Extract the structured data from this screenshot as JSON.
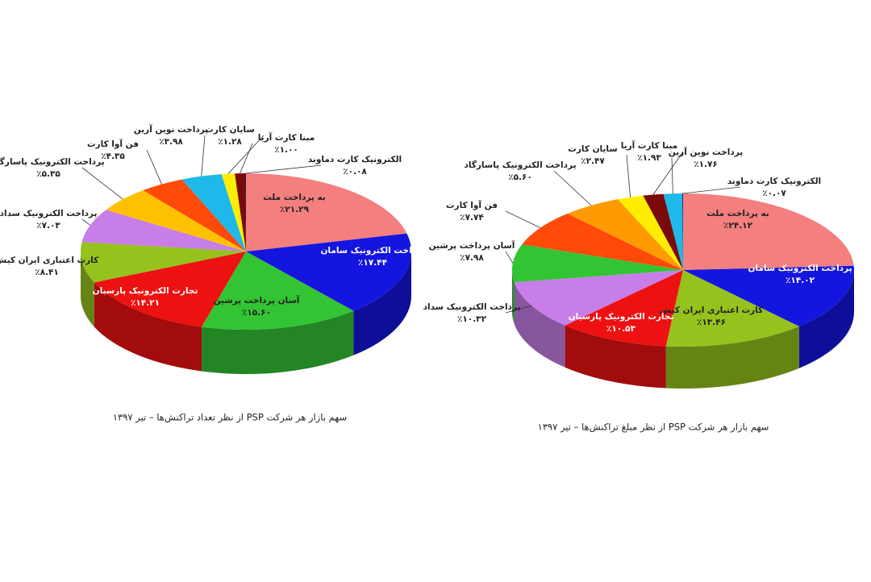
{
  "chart_data": [
    {
      "type": "pie",
      "title": "سهم بازار هر شرکت PSP از نظر تعداد تراکنش‌ها – تیر ۱۳۹۷",
      "categories": [
        "به پرداخت ملت",
        "پرداخت الکترونیک سامان",
        "آسان پرداخت پرشین",
        "تجارت الکترونیک پارسیان",
        "کارت اعتباری ایران کیش",
        "پرداخت الکترونیک سداد",
        "پرداخت الکترونیک پاسارگاد",
        "فن آوا کارت",
        "پرداخت نوین آرین",
        "سایان کارت",
        "مبنا کارت آریا",
        "الکترونیک کارت دماوند"
      ],
      "values": [
        21.29,
        17.44,
        15.6,
        14.21,
        8.41,
        7.03,
        5.35,
        4.35,
        3.98,
        1.28,
        1.0,
        0.08
      ],
      "value_labels": [
        "٪۲۱.۲۹",
        "٪۱۷.۴۴",
        "٪۱۵.۶۰",
        "٪۱۴.۲۱",
        "٪۸.۴۱",
        "٪۷.۰۳",
        "٪۵.۳۵",
        "٪۴.۳۵",
        "٪۳.۹۸",
        "٪۱.۲۸",
        "٪۱.۰۰",
        "٪۰.۰۸"
      ],
      "colors": [
        "#f47f7f",
        "#1515e0",
        "#33c433",
        "#ee1111",
        "#95c21c",
        "#c77ee8",
        "#ffc000",
        "#ff4a0a",
        "#1fb8ea",
        "#ffee00",
        "#7a0a0a",
        "#101050"
      ]
    },
    {
      "type": "pie",
      "title": "سهم بازار هر شرکت PSP از نظر مبلغ تراکنش‌ها – تیر ۱۳۹۷",
      "categories": [
        "به پرداخت ملت",
        "پرداخت الکترونیک سامان",
        "کارت اعتباری ایران کیش",
        "تجارت الکترونیک پارسیان",
        "پرداخت الکترونیک سداد",
        "آسان پرداخت پرشین",
        "فن آوا کارت",
        "پرداخت الکترونیک پاسارگاد",
        "سایان کارت",
        "مبنا کارت آریا",
        "پرداخت نوین آرین",
        "الکترونیک کارت دماوند"
      ],
      "values": [
        24.12,
        14.02,
        13.46,
        10.53,
        10.32,
        7.98,
        7.74,
        5.6,
        2.47,
        1.93,
        1.76,
        0.07
      ],
      "value_labels": [
        "٪۲۴.۱۲",
        "٪۱۴.۰۲",
        "٪۱۳.۴۶",
        "٪۱۰.۵۳",
        "٪۱۰.۳۲",
        "٪۷.۹۸",
        "٪۷.۷۴",
        "٪۵.۶۰",
        "٪۲.۴۷",
        "٪۱.۹۳",
        "٪۱.۷۶",
        "٪۰.۰۷"
      ],
      "colors": [
        "#f47f7f",
        "#1515e0",
        "#95c21c",
        "#ee1111",
        "#c77ee8",
        "#33c433",
        "#ff4a0a",
        "#ff9a00",
        "#ffee00",
        "#7a0a0a",
        "#1fb8ea",
        "#101050"
      ]
    }
  ]
}
